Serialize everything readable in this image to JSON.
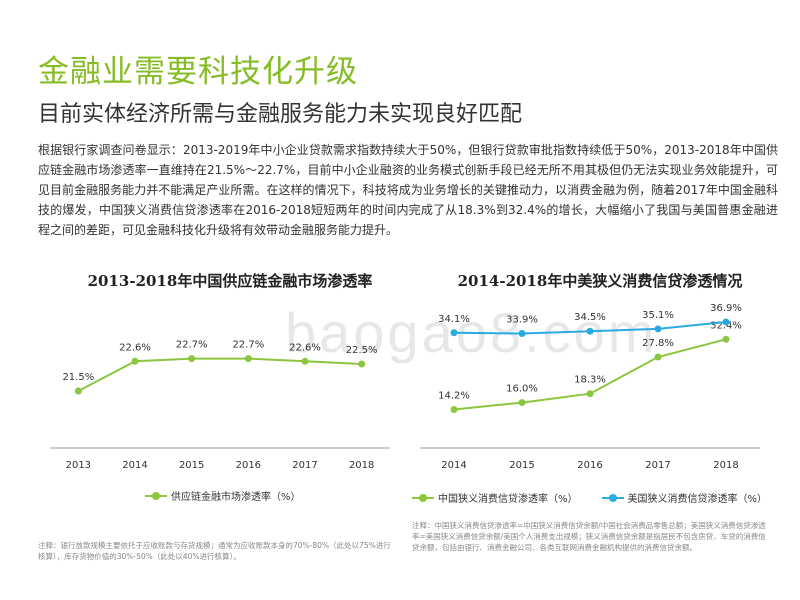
{
  "header": {
    "title": "金融业需要科技化升级",
    "subtitle": "目前实体经济所需与金融服务能力未实现良好匹配"
  },
  "body_text": "根据银行家调查问卷显示：2013-2019年中小企业贷款需求指数持续大于50%，但银行贷款审批指数持续低于50%，2013-2018年中国供应链金融市场渗透率一直维持在21.5%～22.7%，目前中小企业融资的业务模式创新手段已经无所不用其极但仍无法实现业务效能提升，可见目前金融服务能力并不能满足产业所需。在这样的情况下，科技将成为业务增长的关键推动力，以消费金融为例，随着2017年中国金融科技的爆发，中国狭义消费信贷渗透率在2016-2018短短两年的时间内完成了从18.3%到32.4%的增长，大幅缩小了我国与美国普惠金融进程之间的差距，可见金融科技化升级将有效带动金融服务能力提升。",
  "watermark": "baogao8.com",
  "colors": {
    "green": "#8cc63f",
    "blue": "#29abe2",
    "title_green": "#86bc25"
  },
  "chart_data": [
    {
      "type": "line",
      "title": "2013-2018年中国供应链金融市场渗透率",
      "categories": [
        "2013",
        "2014",
        "2015",
        "2016",
        "2017",
        "2018"
      ],
      "series": [
        {
          "name": "供应链金融市场渗透率（%）",
          "color": "#8cc63f",
          "values": [
            21.5,
            22.6,
            22.7,
            22.7,
            22.6,
            22.5
          ],
          "labels": [
            "21.5%",
            "22.6%",
            "22.7%",
            "22.7%",
            "22.6%",
            "22.5%"
          ]
        }
      ],
      "ylim": [
        19.5,
        24.5
      ],
      "grid": false,
      "legend": "bottom",
      "note": "注释：银行放款规模主要依托于应收账款与存货规模；通常为应收账款本身的70%-80%（此处以75%进行核算），库存货物价值的30%-50%（此处以40%进行核算）。"
    },
    {
      "type": "line",
      "title": "2014-2018年中美狭义消费信贷渗透情况",
      "categories": [
        "2014",
        "2015",
        "2016",
        "2017",
        "2018"
      ],
      "series": [
        {
          "name": "中国狭义消费信贷渗透率（%）",
          "color": "#8cc63f",
          "values": [
            14.2,
            16.0,
            18.3,
            27.8,
            32.4
          ],
          "labels": [
            "14.2%",
            "16.0%",
            "18.3%",
            "27.8%",
            "32.4%"
          ]
        },
        {
          "name": "美国狭义消费信贷渗透率（%）",
          "color": "#29abe2",
          "values": [
            34.1,
            33.9,
            34.5,
            35.1,
            36.9
          ],
          "labels": [
            "34.1%",
            "33.9%",
            "34.5%",
            "35.1%",
            "36.9%"
          ]
        }
      ],
      "ylim": [
        5,
        40
      ],
      "grid": false,
      "legend": "bottom",
      "note": "注释：中国狭义消费信贷渗透率=中国狭义消费信贷余额/中国社会消费品零售总额；美国狭义消费信贷渗透率=美国狭义消费信贷余额/美国个人消费支出规模；狭义消费信贷余额是指居民不包含房贷、车贷的消费信贷余额，包括由银行、消费金融公司、各类互联网消费金融机构提供的消费信贷余额。"
    }
  ]
}
